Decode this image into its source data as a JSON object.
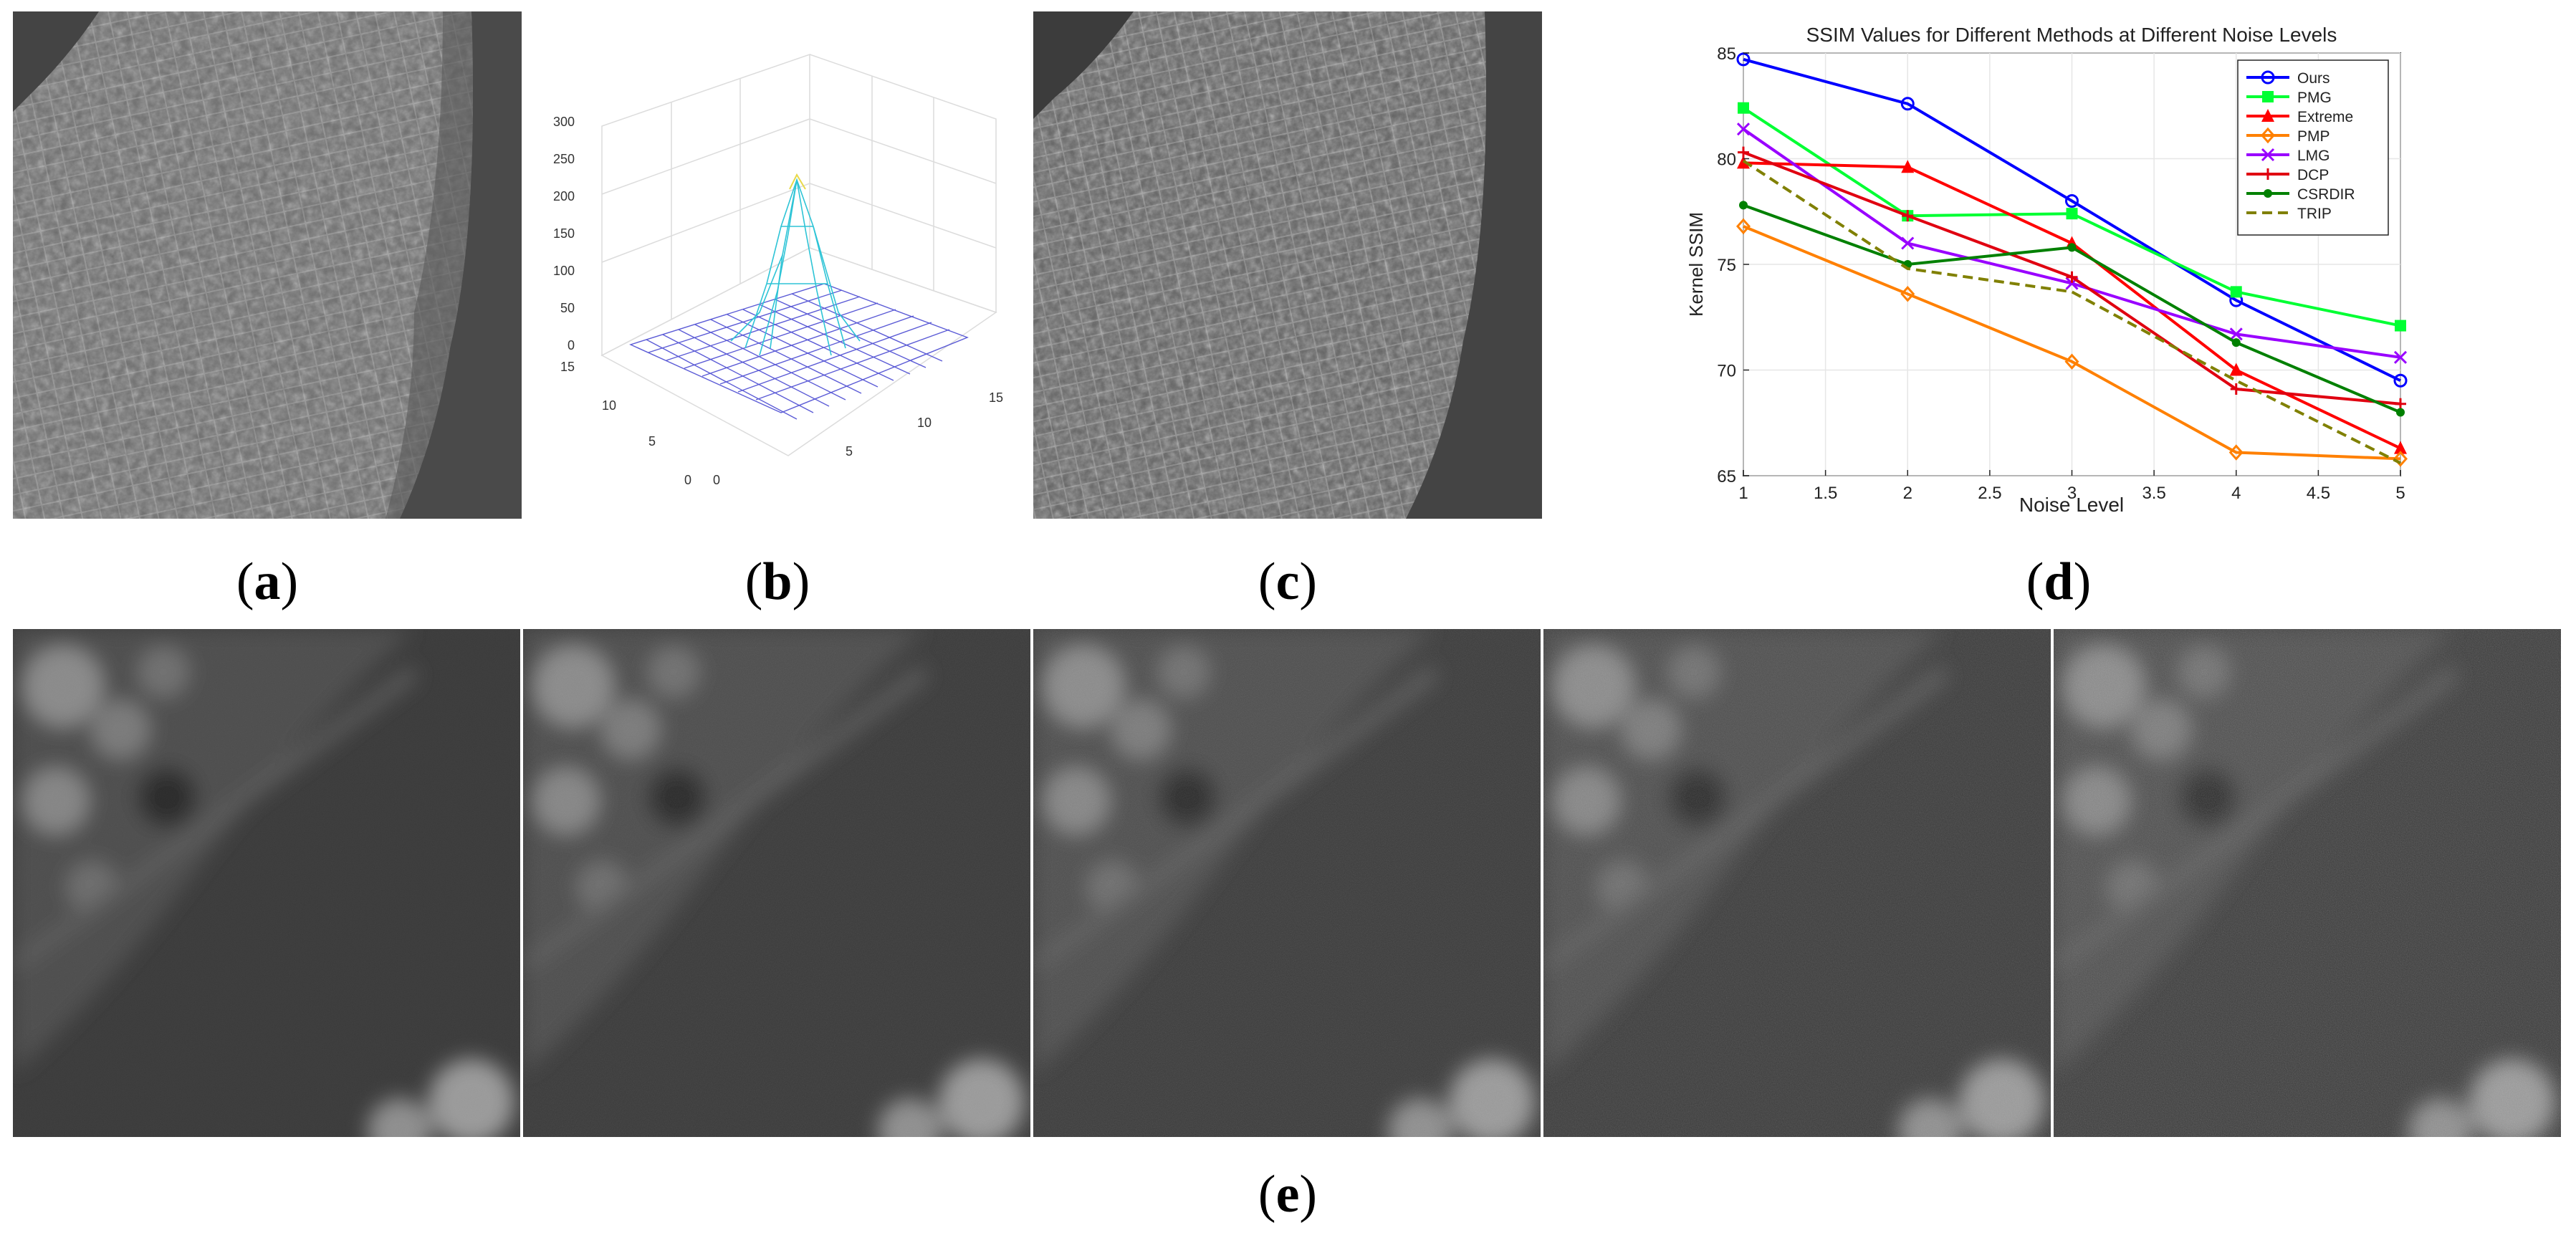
{
  "panel_labels": {
    "a": {
      "open": "(",
      "letter": "a",
      "close": ")"
    },
    "b": {
      "open": "(",
      "letter": "b",
      "close": ")"
    },
    "c": {
      "open": "(",
      "letter": "c",
      "close": ")"
    },
    "d": {
      "open": "(",
      "letter": "d",
      "close": ")"
    },
    "e": {
      "open": "(",
      "letter": "e",
      "close": ")"
    }
  },
  "surface_plot": {
    "z_ticks": [
      "300",
      "250",
      "200",
      "150",
      "100",
      "50",
      "0"
    ],
    "y_ticks": [
      "15",
      "10",
      "5",
      "0"
    ],
    "x_ticks": [
      "0",
      "5",
      "10",
      "15"
    ],
    "mesh_color": "#5b5bd6",
    "peak_color": "#2ec4d6"
  },
  "chart_data": {
    "type": "line",
    "title": "SSIM Values for Different Methods at Different Noise Levels",
    "xlabel": "Noise Level",
    "ylabel": "Kernel SSIM",
    "x": [
      1,
      2,
      3,
      4,
      5
    ],
    "xlim": [
      1,
      5
    ],
    "ylim": [
      65,
      85
    ],
    "x_ticks": [
      "1",
      "1.5",
      "2",
      "2.5",
      "3",
      "3.5",
      "4",
      "4.5",
      "5"
    ],
    "y_ticks": [
      "65",
      "70",
      "75",
      "80",
      "85"
    ],
    "grid": true,
    "legend_position": "top-right",
    "series": [
      {
        "name": "Ours",
        "color": "#0000ff",
        "marker": "circle",
        "dash": "solid",
        "values": [
          84.7,
          82.6,
          78.0,
          73.3,
          69.5
        ]
      },
      {
        "name": "PMG",
        "color": "#00ff33",
        "marker": "square",
        "dash": "solid",
        "values": [
          82.4,
          77.3,
          77.4,
          73.7,
          72.1
        ]
      },
      {
        "name": "Extreme",
        "color": "#ff0000",
        "marker": "triangle",
        "dash": "solid",
        "values": [
          79.8,
          79.6,
          76.0,
          70.0,
          66.3
        ]
      },
      {
        "name": "PMP",
        "color": "#ff8000",
        "marker": "diamond",
        "dash": "solid",
        "values": [
          76.8,
          73.6,
          70.4,
          66.1,
          65.8
        ]
      },
      {
        "name": "LMG",
        "color": "#9900ff",
        "marker": "x",
        "dash": "solid",
        "values": [
          81.4,
          76.0,
          74.1,
          71.7,
          70.6
        ]
      },
      {
        "name": "DCP",
        "color": "#e00010",
        "marker": "plus",
        "dash": "solid",
        "values": [
          80.3,
          77.3,
          74.4,
          69.1,
          68.4
        ]
      },
      {
        "name": "CSRDIR",
        "color": "#008000",
        "marker": "dot",
        "dash": "solid",
        "values": [
          77.8,
          75.0,
          75.8,
          71.3,
          68.0
        ]
      },
      {
        "name": "TRIP",
        "color": "#808000",
        "marker": "none",
        "dash": "dashed",
        "values": [
          79.9,
          74.8,
          73.7,
          69.5,
          65.6
        ]
      }
    ]
  }
}
